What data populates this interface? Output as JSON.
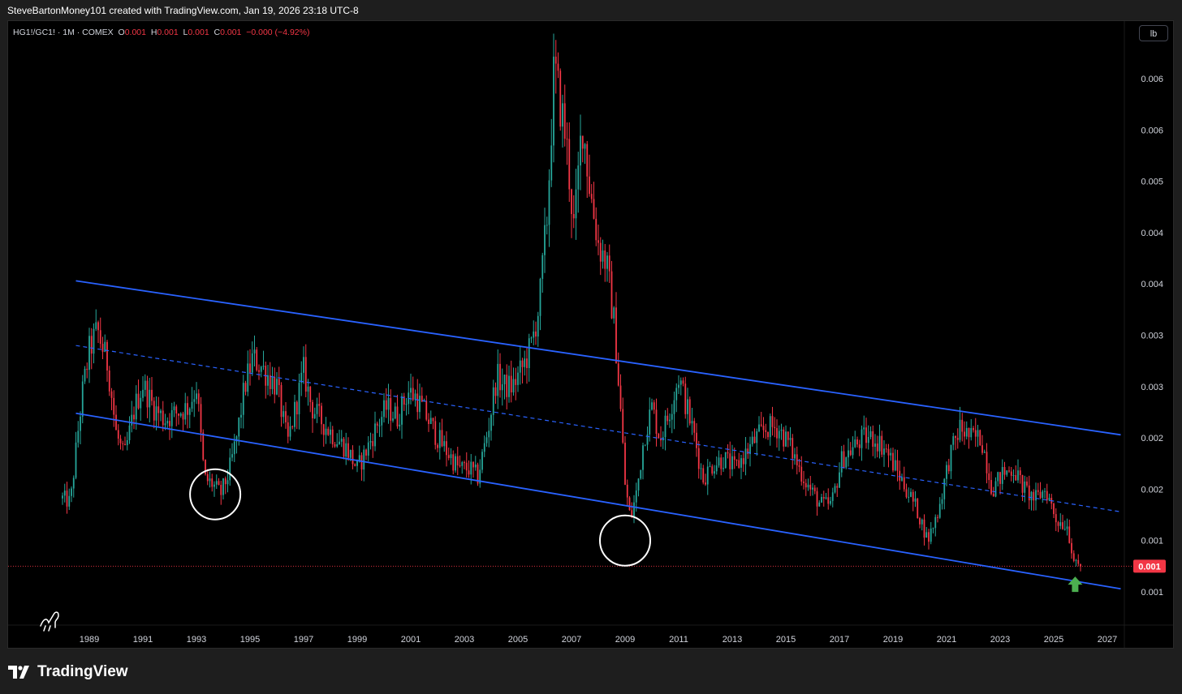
{
  "header": {
    "credit": "SteveBartonMoney101 created with TradingView.com, Jan 19, 2026 23:18 UTC-8"
  },
  "legend": {
    "symbol": "HG1!/GC1! · 1M · COMEX",
    "o_label": "O",
    "o": "0.001",
    "h_label": "H",
    "h": "0.001",
    "l_label": "L",
    "l": "0.001",
    "c_label": "C",
    "c": "0.001",
    "change": "−0.000 (−4.92%)"
  },
  "unit_button": "lb",
  "brand": {
    "name": "TradingView"
  },
  "colors": {
    "up": "#26a69a",
    "down": "#f23645",
    "channel": "#2962ff",
    "marker": "#4caf50"
  },
  "chart_data": {
    "type": "candlestick",
    "symbol": "HG1!/GC1!",
    "interval": "1M",
    "exchange": "COMEX",
    "x_tick_labels": [
      "1989",
      "1991",
      "1993",
      "1995",
      "1997",
      "1999",
      "2001",
      "2003",
      "2005",
      "2007",
      "2009",
      "2011",
      "2013",
      "2015",
      "2017",
      "2019",
      "2021",
      "2023",
      "2025",
      "2027"
    ],
    "y_tick_labels": [
      "0.006",
      "0.006",
      "0.005",
      "0.004",
      "0.004",
      "0.003",
      "0.003",
      "0.002",
      "0.002",
      "0.001",
      "0.001"
    ],
    "y_tick_values": [
      0.0061,
      0.0056,
      0.0051,
      0.0046,
      0.0041,
      0.0036,
      0.0031,
      0.0026,
      0.0021,
      0.0016,
      0.0011
    ],
    "y_range": [
      0.00085,
      0.0067
    ],
    "x_range": [
      1988.5,
      2027.8
    ],
    "last_price_label": "0.001",
    "last_price_value": 0.00135,
    "price_path": [
      [
        1988.0,
        0.00201
      ],
      [
        1988.3,
        0.00197
      ],
      [
        1988.55,
        0.0026
      ],
      [
        1988.75,
        0.00305
      ],
      [
        1989.0,
        0.00345
      ],
      [
        1989.3,
        0.00365
      ],
      [
        1989.7,
        0.0033
      ],
      [
        1990.0,
        0.00265
      ],
      [
        1990.3,
        0.0024
      ],
      [
        1990.7,
        0.0029
      ],
      [
        1991.0,
        0.00312
      ],
      [
        1991.4,
        0.0029
      ],
      [
        1991.8,
        0.00278
      ],
      [
        1992.3,
        0.00285
      ],
      [
        1992.7,
        0.0029
      ],
      [
        1993.0,
        0.0031
      ],
      [
        1993.3,
        0.0022
      ],
      [
        1993.6,
        0.00215
      ],
      [
        1993.9,
        0.00205
      ],
      [
        1994.2,
        0.00225
      ],
      [
        1994.5,
        0.0026
      ],
      [
        1994.8,
        0.0031
      ],
      [
        1995.1,
        0.00338
      ],
      [
        1995.4,
        0.0033
      ],
      [
        1995.7,
        0.0032
      ],
      [
        1996.0,
        0.0031
      ],
      [
        1996.4,
        0.00255
      ],
      [
        1996.7,
        0.0029
      ],
      [
        1997.0,
        0.00325
      ],
      [
        1997.3,
        0.0029
      ],
      [
        1997.7,
        0.00275
      ],
      [
        1998.2,
        0.0026
      ],
      [
        1998.6,
        0.0025
      ],
      [
        1999.0,
        0.0023
      ],
      [
        1999.3,
        0.00245
      ],
      [
        1999.7,
        0.0027
      ],
      [
        2000.1,
        0.0029
      ],
      [
        2000.5,
        0.0028
      ],
      [
        2000.9,
        0.00305
      ],
      [
        2001.2,
        0.003
      ],
      [
        2001.6,
        0.0028
      ],
      [
        2002.0,
        0.0026
      ],
      [
        2002.4,
        0.00245
      ],
      [
        2002.8,
        0.0023
      ],
      [
        2003.2,
        0.0023
      ],
      [
        2003.5,
        0.00222
      ],
      [
        2003.9,
        0.0027
      ],
      [
        2004.2,
        0.0032
      ],
      [
        2004.5,
        0.0031
      ],
      [
        2004.8,
        0.0031
      ],
      [
        2005.2,
        0.0033
      ],
      [
        2005.5,
        0.0035
      ],
      [
        2005.8,
        0.0039
      ],
      [
        2006.1,
        0.0048
      ],
      [
        2006.35,
        0.0062
      ],
      [
        2006.55,
        0.0059
      ],
      [
        2006.8,
        0.0055
      ],
      [
        2007.1,
        0.0046
      ],
      [
        2007.4,
        0.0057
      ],
      [
        2007.7,
        0.005
      ],
      [
        2008.0,
        0.0045
      ],
      [
        2008.3,
        0.0043
      ],
      [
        2008.6,
        0.0037
      ],
      [
        2008.85,
        0.0028
      ],
      [
        2009.0,
        0.00215
      ],
      [
        2009.2,
        0.0018
      ],
      [
        2009.45,
        0.0021
      ],
      [
        2009.7,
        0.0026
      ],
      [
        2010.0,
        0.0029
      ],
      [
        2010.3,
        0.0026
      ],
      [
        2010.6,
        0.0028
      ],
      [
        2011.0,
        0.0032
      ],
      [
        2011.3,
        0.0029
      ],
      [
        2011.6,
        0.0026
      ],
      [
        2011.9,
        0.0022
      ],
      [
        2012.3,
        0.00235
      ],
      [
        2012.7,
        0.0024
      ],
      [
        2013.1,
        0.0023
      ],
      [
        2013.5,
        0.00245
      ],
      [
        2013.9,
        0.0026
      ],
      [
        2014.3,
        0.0027
      ],
      [
        2014.7,
        0.0027
      ],
      [
        2015.1,
        0.00255
      ],
      [
        2015.5,
        0.0023
      ],
      [
        2015.9,
        0.0021
      ],
      [
        2016.3,
        0.00195
      ],
      [
        2016.7,
        0.00195
      ],
      [
        2017.1,
        0.0024
      ],
      [
        2017.5,
        0.0025
      ],
      [
        2017.9,
        0.0026
      ],
      [
        2018.3,
        0.0026
      ],
      [
        2018.7,
        0.0025
      ],
      [
        2019.1,
        0.0023
      ],
      [
        2019.5,
        0.0021
      ],
      [
        2019.9,
        0.0019
      ],
      [
        2020.3,
        0.0016
      ],
      [
        2020.7,
        0.0019
      ],
      [
        2021.1,
        0.0024
      ],
      [
        2021.5,
        0.0027
      ],
      [
        2021.9,
        0.0026
      ],
      [
        2022.3,
        0.0026
      ],
      [
        2022.7,
        0.0021
      ],
      [
        2023.1,
        0.00225
      ],
      [
        2023.5,
        0.0023
      ],
      [
        2023.9,
        0.0021
      ],
      [
        2024.3,
        0.002
      ],
      [
        2024.7,
        0.0021
      ],
      [
        2025.1,
        0.0018
      ],
      [
        2025.5,
        0.00175
      ],
      [
        2025.8,
        0.00135
      ],
      [
        2026.05,
        0.00135
      ]
    ],
    "channel": {
      "upper": [
        [
          1988.5,
          0.00413
        ],
        [
          2027.5,
          0.00263
        ]
      ],
      "lower": [
        [
          1988.5,
          0.00284
        ],
        [
          2027.5,
          0.00113
        ]
      ],
      "mid_dashed": [
        [
          1988.5,
          0.0035
        ],
        [
          2027.5,
          0.00188
        ]
      ]
    },
    "annotations": [
      {
        "type": "circle",
        "x": 1993.7,
        "y": 0.00205
      },
      {
        "type": "circle",
        "x": 2009.0,
        "y": 0.0016
      },
      {
        "type": "arrow-up",
        "x": 2025.8,
        "y": 0.00117
      }
    ]
  }
}
